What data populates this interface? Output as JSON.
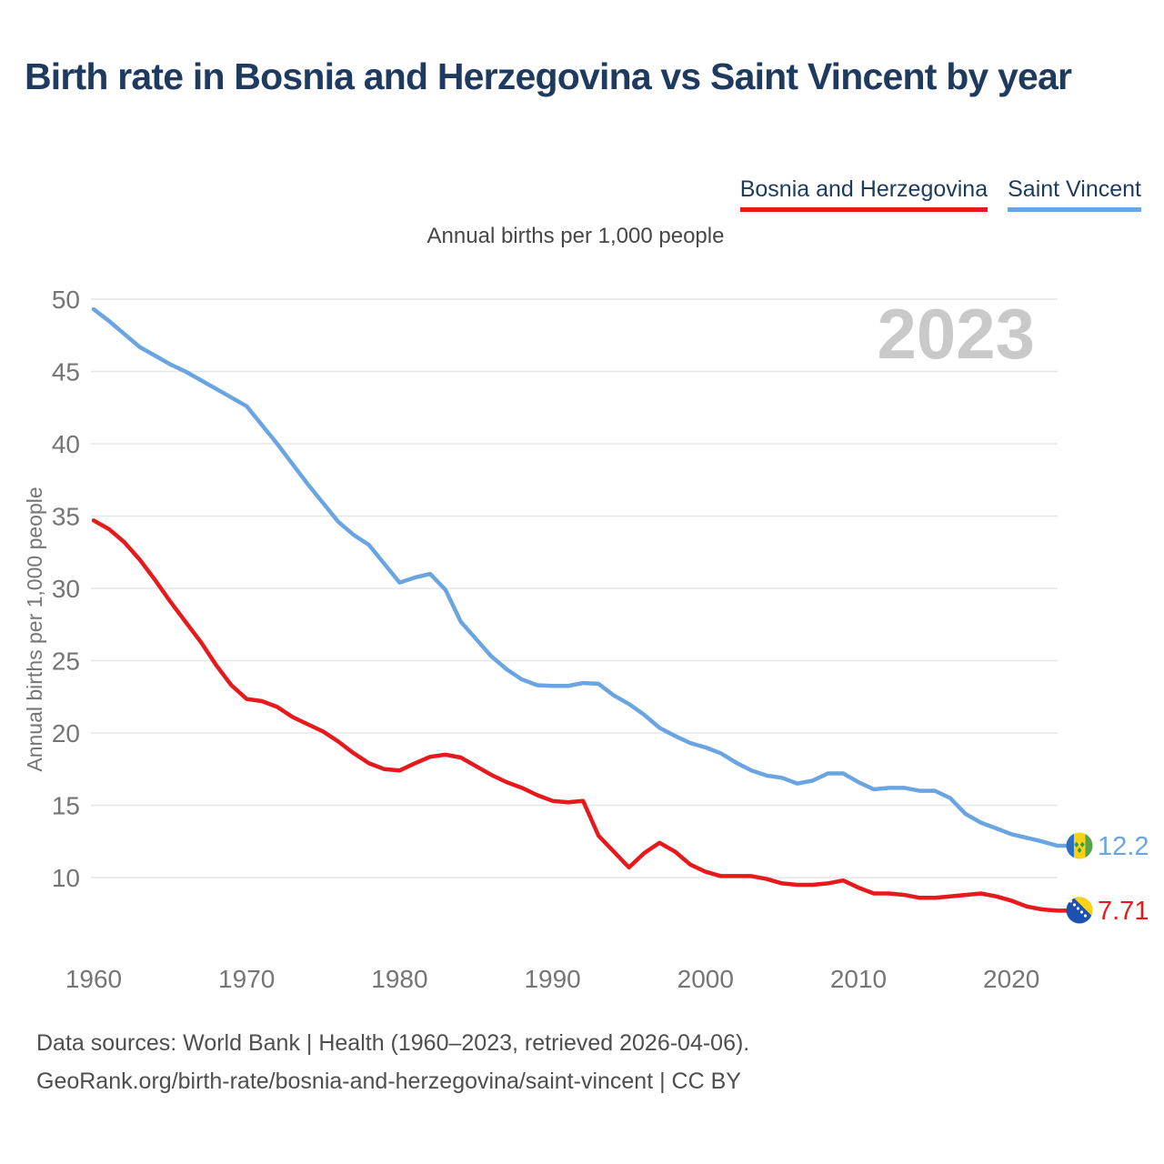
{
  "title": "Birth rate in Bosnia and Herzegovina vs Saint Vincent by year",
  "subtitle": "Annual births per 1,000 people",
  "watermark": "2023",
  "legend": [
    {
      "label": "Bosnia and Herzegovina",
      "color": "#e8191c"
    },
    {
      "label": "Saint Vincent",
      "color": "#6aa5e1"
    }
  ],
  "footer": {
    "line1": "Data sources: World Bank | Health (1960–2023, retrieved 2026-04-06).",
    "line2": "GeoRank.org/birth-rate/bosnia-and-herzegovina/saint-vincent | CC BY"
  },
  "colors": {
    "title_text": "#1e3a5f",
    "subtitle_text": "#474747",
    "axis_text": "#757575",
    "grid": "#e6e6e6",
    "watermark": "#c9c9c9",
    "footer_text": "#4e4e4e",
    "bosnia_red": "#e8191c",
    "saint_vincent_blue": "#6aa5e1"
  },
  "chart_data": {
    "type": "line",
    "title": "Birth rate in Bosnia and Herzegovina vs Saint Vincent by year",
    "xlabel": "",
    "ylabel": "Annual births per 1,000 people",
    "xlim": [
      1960,
      2023
    ],
    "ylim": [
      6.5,
      51
    ],
    "grid": true,
    "legend_position": "top-right",
    "yticks": [
      10,
      15,
      20,
      25,
      30,
      35,
      40,
      45,
      50
    ],
    "xticks": [
      1960,
      1970,
      1980,
      1990,
      2000,
      2010,
      2020
    ],
    "x": [
      1960,
      1961,
      1962,
      1963,
      1964,
      1965,
      1966,
      1967,
      1968,
      1969,
      1970,
      1971,
      1972,
      1973,
      1974,
      1975,
      1976,
      1977,
      1978,
      1979,
      1980,
      1981,
      1982,
      1983,
      1984,
      1985,
      1986,
      1987,
      1988,
      1989,
      1990,
      1991,
      1992,
      1993,
      1994,
      1995,
      1996,
      1997,
      1998,
      1999,
      2000,
      2001,
      2002,
      2003,
      2004,
      2005,
      2006,
      2007,
      2008,
      2009,
      2010,
      2011,
      2012,
      2013,
      2014,
      2015,
      2016,
      2017,
      2018,
      2019,
      2020,
      2021,
      2022,
      2023
    ],
    "series": [
      {
        "name": "Bosnia and Herzegovina",
        "color": "#e8191c",
        "end_label": "7.71",
        "flag_icon": "bosnia-and-herzegovina-flag",
        "values": [
          34.7,
          34.1,
          33.2,
          32.0,
          30.6,
          29.1,
          27.7,
          26.3,
          24.7,
          23.3,
          22.35,
          22.2,
          21.8,
          21.1,
          20.6,
          20.1,
          19.4,
          18.6,
          17.9,
          17.5,
          17.4,
          17.9,
          18.35,
          18.5,
          18.3,
          17.7,
          17.1,
          16.6,
          16.2,
          15.7,
          15.3,
          15.2,
          15.3,
          12.9,
          11.8,
          10.7,
          11.7,
          12.4,
          11.8,
          10.9,
          10.4,
          10.1,
          10.1,
          10.1,
          9.9,
          9.6,
          9.5,
          9.5,
          9.6,
          9.8,
          9.3,
          8.9,
          8.9,
          8.8,
          8.6,
          8.6,
          8.7,
          8.8,
          8.9,
          8.7,
          8.4,
          8.0,
          7.8,
          7.71
        ]
      },
      {
        "name": "Saint Vincent",
        "color": "#6aa5e1",
        "end_label": "12.2",
        "flag_icon": "saint-vincent-flag",
        "values": [
          49.3,
          48.5,
          47.6,
          46.7,
          46.1,
          45.5,
          45.0,
          44.4,
          43.8,
          43.2,
          42.6,
          41.3,
          40.0,
          38.6,
          37.2,
          35.9,
          34.6,
          33.7,
          33.0,
          31.7,
          30.4,
          30.75,
          31.0,
          29.9,
          27.7,
          26.5,
          25.3,
          24.4,
          23.7,
          23.3,
          23.25,
          23.25,
          23.45,
          23.4,
          22.6,
          22.0,
          21.25,
          20.35,
          19.8,
          19.3,
          19.0,
          18.6,
          17.95,
          17.4,
          17.05,
          16.9,
          16.5,
          16.7,
          17.2,
          17.2,
          16.6,
          16.1,
          16.2,
          16.2,
          16.0,
          16.0,
          15.5,
          14.4,
          13.8,
          13.4,
          13.0,
          12.75,
          12.5,
          12.2
        ]
      }
    ]
  }
}
